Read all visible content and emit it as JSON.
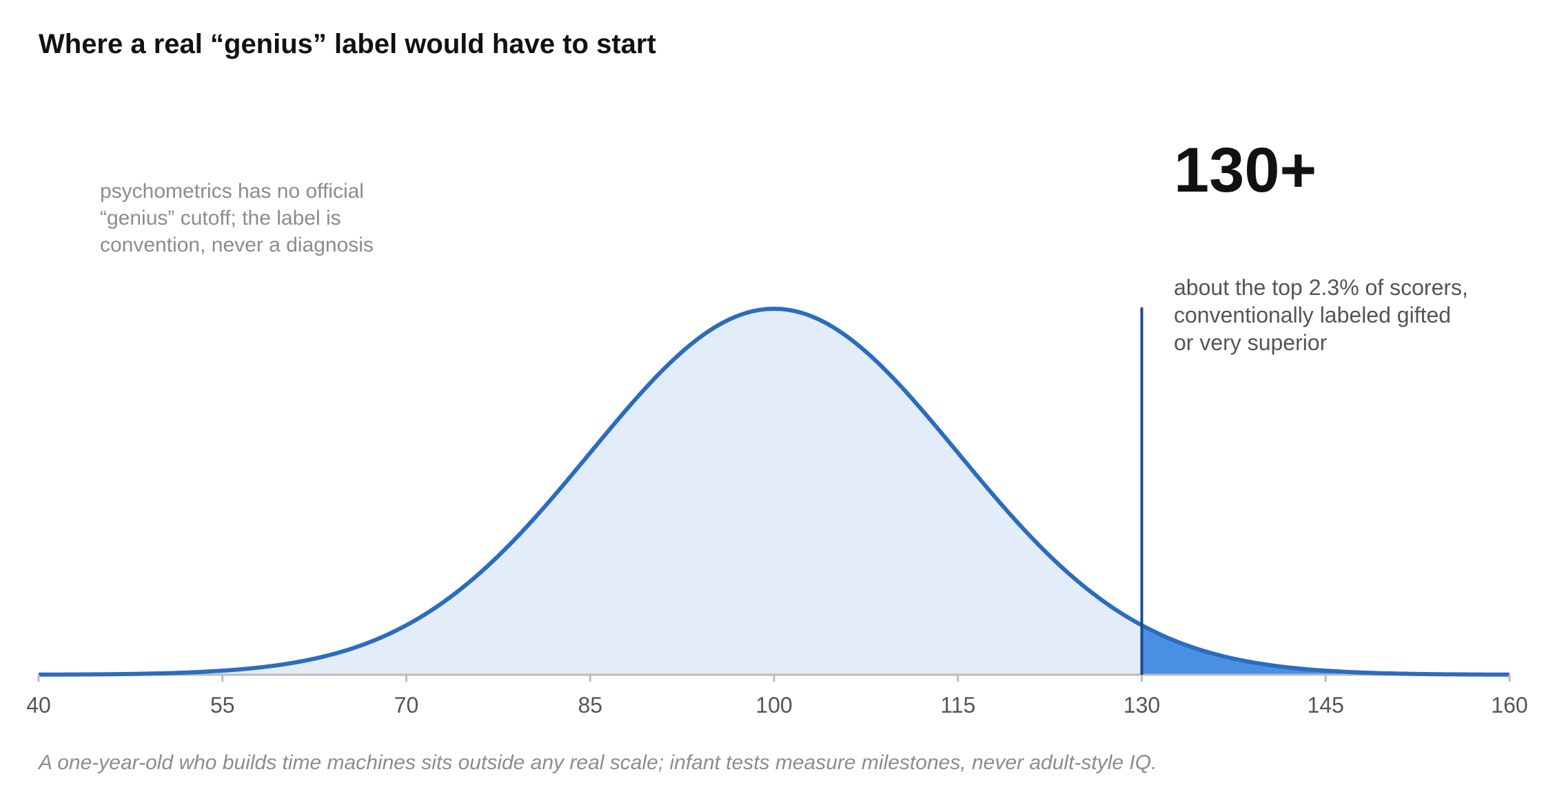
{
  "chart_data": {
    "type": "area",
    "title": "Where a real “genius” label would have to start",
    "distribution": {
      "kind": "normal",
      "mean": 100,
      "sd": 15
    },
    "xlim": [
      40,
      160
    ],
    "x_ticks": [
      40,
      55,
      70,
      85,
      100,
      115,
      130,
      145,
      160
    ],
    "threshold": {
      "value": 130,
      "label": "130+",
      "description": [
        "about the top 2.3% of scorers,",
        "conventionally labeled gifted",
        "or very superior"
      ]
    },
    "note": [
      "psychometrics has no official",
      "“genius” cutoff; the label is",
      "convention, never a diagnosis"
    ],
    "footnote": "A one-year-old who builds time machines sits outside any real scale; infant tests measure milestones, never adult-style IQ.",
    "grid": false,
    "colors": {
      "curve": "#2b6cbf",
      "body_fill": "#e3edf9",
      "tail_fill": "#4a90e2",
      "threshold_line": "#1a4a8c",
      "axis": "#bbbbbb"
    }
  }
}
